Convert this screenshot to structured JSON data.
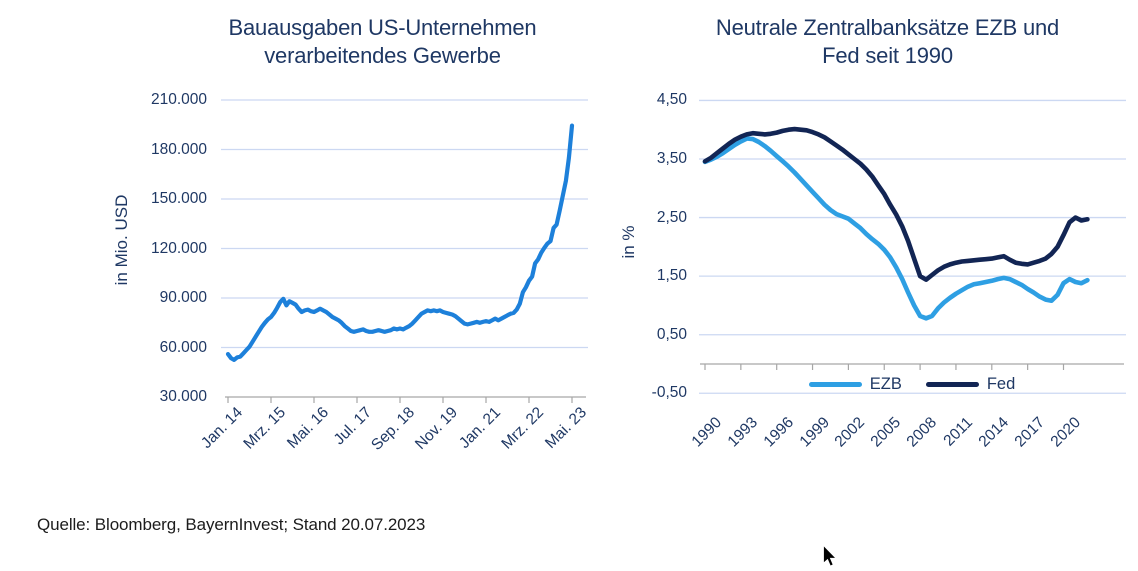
{
  "page": {
    "source_note": "Quelle: Bloomberg, BayernInvest; Stand 20.07.2023"
  },
  "colors": {
    "title_text": "#1f3864",
    "axis_text": "#1f3864",
    "gridline": "#ccd8f2",
    "axis_line": "#a6a6a6",
    "construction_line": "#1d80da",
    "ezb_line": "#2e9fe3",
    "fed_line": "#122554",
    "source_text": "#1c1c1c"
  },
  "left_chart": {
    "title_line1": "Bauausgaben US-Unternehmen",
    "title_line2": "verarbeitendes Gewerbe",
    "y_axis_title": "in Mio. USD",
    "y_tick_labels": [
      "210.000",
      "180.000",
      "150.000",
      "120.000",
      "90.000",
      "60.000",
      "30.000"
    ],
    "x_tick_labels": [
      "Jan. 14",
      "Mrz. 15",
      "Mai. 16",
      "Jul. 17",
      "Sep. 18",
      "Nov. 19",
      "Jan. 21",
      "Mrz. 22",
      "Mai. 23"
    ]
  },
  "right_chart": {
    "title_line1": "Neutrale Zentralbanksätze EZB und",
    "title_line2": "Fed seit 1990",
    "y_axis_title": "in %",
    "y_tick_labels": [
      "4,50",
      "3,50",
      "2,50",
      "1,50",
      "0,50",
      "-0,50"
    ],
    "x_tick_labels": [
      "1990",
      "1993",
      "1996",
      "1999",
      "2002",
      "2005",
      "2008",
      "2011",
      "2014",
      "2017",
      "2020"
    ],
    "legend": [
      {
        "label": "EZB",
        "color": "#2e9fe3"
      },
      {
        "label": "Fed",
        "color": "#122554"
      }
    ]
  },
  "chart_data": [
    {
      "type": "line",
      "title": "Bauausgaben US-Unternehmen verarbeitendes Gewerbe",
      "xlabel": "",
      "ylabel": "in Mio. USD",
      "x_start": "2014-01",
      "x_interval": "monthly",
      "x_tick_labels": [
        "Jan. 14",
        "Mrz. 15",
        "Mai. 16",
        "Jul. 17",
        "Sep. 18",
        "Nov. 19",
        "Jan. 21",
        "Mrz. 22",
        "Mai. 23"
      ],
      "ylim": [
        30000,
        210000
      ],
      "y_ticks": [
        30000,
        60000,
        90000,
        120000,
        150000,
        180000,
        210000
      ],
      "grid": "horizontal",
      "legend_position": "none",
      "series": [
        {
          "name": "Bauausgaben verarbeitendes Gewerbe",
          "color": "#1d80da",
          "values": [
            56000,
            53500,
            52500,
            54000,
            54500,
            56500,
            58500,
            60500,
            63500,
            66500,
            69500,
            72500,
            75000,
            77000,
            78500,
            81000,
            84000,
            87500,
            89500,
            85500,
            88000,
            87000,
            86000,
            83500,
            81500,
            82500,
            83000,
            82000,
            81500,
            82500,
            83500,
            82500,
            81500,
            80000,
            78500,
            77500,
            76500,
            75000,
            73000,
            71500,
            70000,
            69500,
            70000,
            70500,
            71000,
            70000,
            69500,
            69500,
            70000,
            70500,
            70000,
            69500,
            70000,
            70500,
            71500,
            71000,
            71500,
            71000,
            72000,
            73000,
            74500,
            76500,
            78500,
            80500,
            81500,
            82500,
            82000,
            82500,
            82000,
            82500,
            81500,
            81000,
            80500,
            80000,
            79000,
            77500,
            76000,
            74500,
            74000,
            74500,
            75000,
            75500,
            75000,
            75500,
            76000,
            75500,
            76500,
            77500,
            76500,
            77500,
            78500,
            79500,
            80500,
            81000,
            83000,
            86500,
            93500,
            96500,
            100500,
            103000,
            111000,
            113500,
            117500,
            120500,
            123000,
            124500,
            132500,
            134500,
            143000,
            152000,
            161000,
            175000,
            194500
          ]
        }
      ]
    },
    {
      "type": "line",
      "title": "Neutrale Zentralbanksätze EZB und Fed seit 1990",
      "xlabel": "",
      "ylabel": "in %",
      "ylim": [
        -0.5,
        4.5
      ],
      "y_ticks": [
        -0.5,
        0.5,
        1.5,
        2.5,
        3.5,
        4.5
      ],
      "x_tick_labels": [
        "1990",
        "1993",
        "1996",
        "1999",
        "2002",
        "2005",
        "2008",
        "2011",
        "2014",
        "2017",
        "2020"
      ],
      "grid": "horizontal",
      "legend_position": "bottom",
      "x": [
        1990,
        1990.5,
        1991,
        1991.5,
        1992,
        1992.5,
        1993,
        1993.5,
        1994,
        1994.5,
        1995,
        1995.5,
        1996,
        1996.5,
        1997,
        1997.5,
        1998,
        1998.5,
        1999,
        1999.5,
        2000,
        2000.5,
        2001,
        2001.5,
        2002,
        2002.5,
        2003,
        2003.5,
        2004,
        2004.5,
        2005,
        2005.5,
        2006,
        2006.5,
        2007,
        2007.5,
        2008,
        2008.5,
        2009,
        2009.5,
        2010,
        2010.5,
        2011,
        2011.5,
        2012,
        2012.5,
        2013,
        2013.5,
        2014,
        2014.5,
        2015,
        2015.5,
        2016,
        2016.5,
        2017,
        2017.5,
        2018,
        2018.5,
        2019,
        2019.5,
        2020,
        2020.5,
        2021,
        2021.5,
        2022
      ],
      "series": [
        {
          "name": "EZB",
          "color": "#2e9fe3",
          "values": [
            3.45,
            3.49,
            3.54,
            3.6,
            3.67,
            3.74,
            3.8,
            3.85,
            3.84,
            3.79,
            3.72,
            3.64,
            3.55,
            3.46,
            3.37,
            3.27,
            3.16,
            3.05,
            2.94,
            2.83,
            2.72,
            2.63,
            2.56,
            2.52,
            2.48,
            2.4,
            2.32,
            2.22,
            2.13,
            2.05,
            1.95,
            1.82,
            1.65,
            1.45,
            1.22,
            1.0,
            0.82,
            0.78,
            0.82,
            0.95,
            1.05,
            1.13,
            1.2,
            1.26,
            1.32,
            1.36,
            1.38,
            1.4,
            1.42,
            1.45,
            1.47,
            1.45,
            1.4,
            1.35,
            1.28,
            1.22,
            1.15,
            1.1,
            1.08,
            1.18,
            1.38,
            1.45,
            1.4,
            1.38,
            1.43
          ]
        },
        {
          "name": "Fed",
          "color": "#122554",
          "values": [
            3.46,
            3.52,
            3.6,
            3.68,
            3.76,
            3.83,
            3.88,
            3.92,
            3.94,
            3.93,
            3.92,
            3.93,
            3.95,
            3.98,
            4.0,
            4.01,
            4.0,
            3.99,
            3.96,
            3.92,
            3.87,
            3.8,
            3.73,
            3.66,
            3.58,
            3.5,
            3.42,
            3.32,
            3.2,
            3.05,
            2.9,
            2.72,
            2.55,
            2.35,
            2.1,
            1.8,
            1.5,
            1.44,
            1.52,
            1.6,
            1.66,
            1.7,
            1.73,
            1.75,
            1.76,
            1.77,
            1.78,
            1.79,
            1.8,
            1.82,
            1.84,
            1.78,
            1.73,
            1.71,
            1.7,
            1.73,
            1.76,
            1.8,
            1.88,
            2.0,
            2.2,
            2.42,
            2.5,
            2.45,
            2.47
          ]
        }
      ]
    }
  ]
}
